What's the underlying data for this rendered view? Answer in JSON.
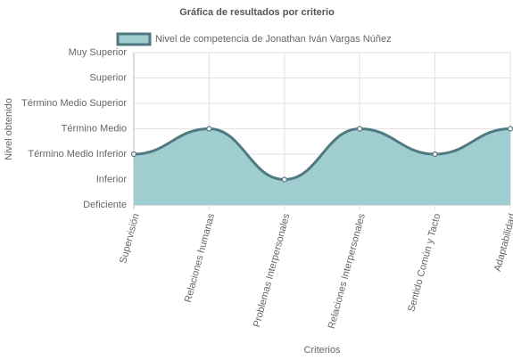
{
  "chart_data": {
    "type": "line",
    "title": "Gráfica de resultados por criterio",
    "x_label": "Criterios",
    "y_label": "Nivel obtenido",
    "categories": [
      "Supervisión",
      "Relaciones humanas",
      "Problemas Interpersonales",
      "Relaciones Interpersonales",
      "Sentido Común y Tacto",
      "Adaptabilidad"
    ],
    "series": [
      {
        "name": "Nivel de competencia de Jonathan Iván Vargas Núñez",
        "color": "#507a82",
        "fill_color": "#a0cdd0",
        "values": [
          2,
          3,
          1,
          3,
          2,
          3
        ]
      }
    ],
    "ylim": [
      0,
      6
    ],
    "yticks": [
      {
        "value": 0,
        "label": "Deficiente"
      },
      {
        "value": 1,
        "label": "Inferior"
      },
      {
        "value": 2,
        "label": "Término Medio Inferior"
      },
      {
        "value": 3,
        "label": "Término Medio"
      },
      {
        "value": 4,
        "label": "Término Medio Superior"
      },
      {
        "value": 5,
        "label": "Superior"
      },
      {
        "value": 6,
        "label": "Muy Superior"
      }
    ],
    "grid": true,
    "fill": true,
    "legend": "top"
  }
}
